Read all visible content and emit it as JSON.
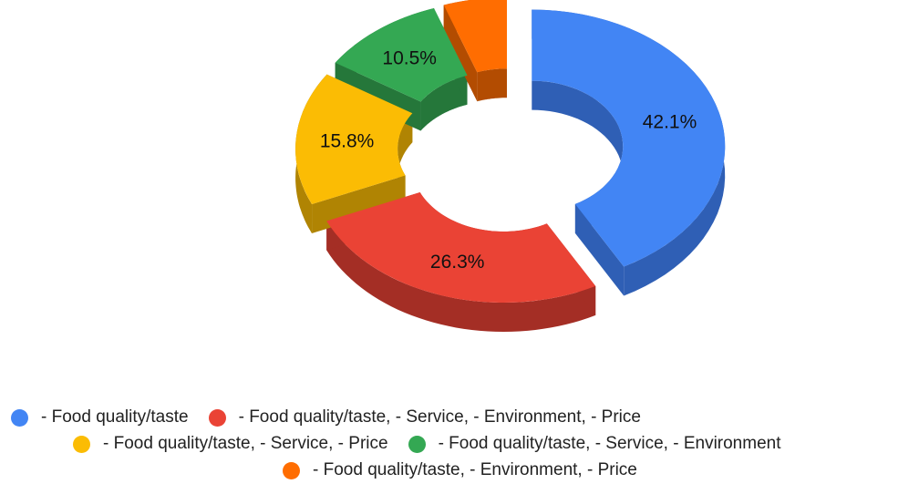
{
  "chart_data": {
    "type": "pie",
    "style": "3d-donut-exploded",
    "title": "",
    "slices": [
      {
        "label": "- Food quality/taste",
        "value": 42.1,
        "display": "42.1%",
        "color": "#4285F4",
        "side": "#2F5FB5"
      },
      {
        "label": "- Food quality/taste, - Service, - Environment, - Price",
        "value": 26.3,
        "display": "26.3%",
        "color": "#EA4335",
        "side": "#A42E25"
      },
      {
        "label": "- Food quality/taste, - Service, - Price",
        "value": 15.8,
        "display": "15.8%",
        "color": "#FBBC04",
        "side": "#B08403"
      },
      {
        "label": "- Food quality/taste, - Service, - Environment",
        "value": 10.5,
        "display": "10.5%",
        "color": "#34A853",
        "side": "#25773A"
      },
      {
        "label": "- Food quality/taste, - Environment, - Price",
        "value": 5.3,
        "display": "",
        "color": "#FF6D01",
        "side": "#B34C01"
      }
    ],
    "legend_position": "bottom"
  },
  "legend": {
    "rows": [
      [
        0,
        1
      ],
      [
        2,
        3
      ],
      [
        4
      ]
    ]
  }
}
